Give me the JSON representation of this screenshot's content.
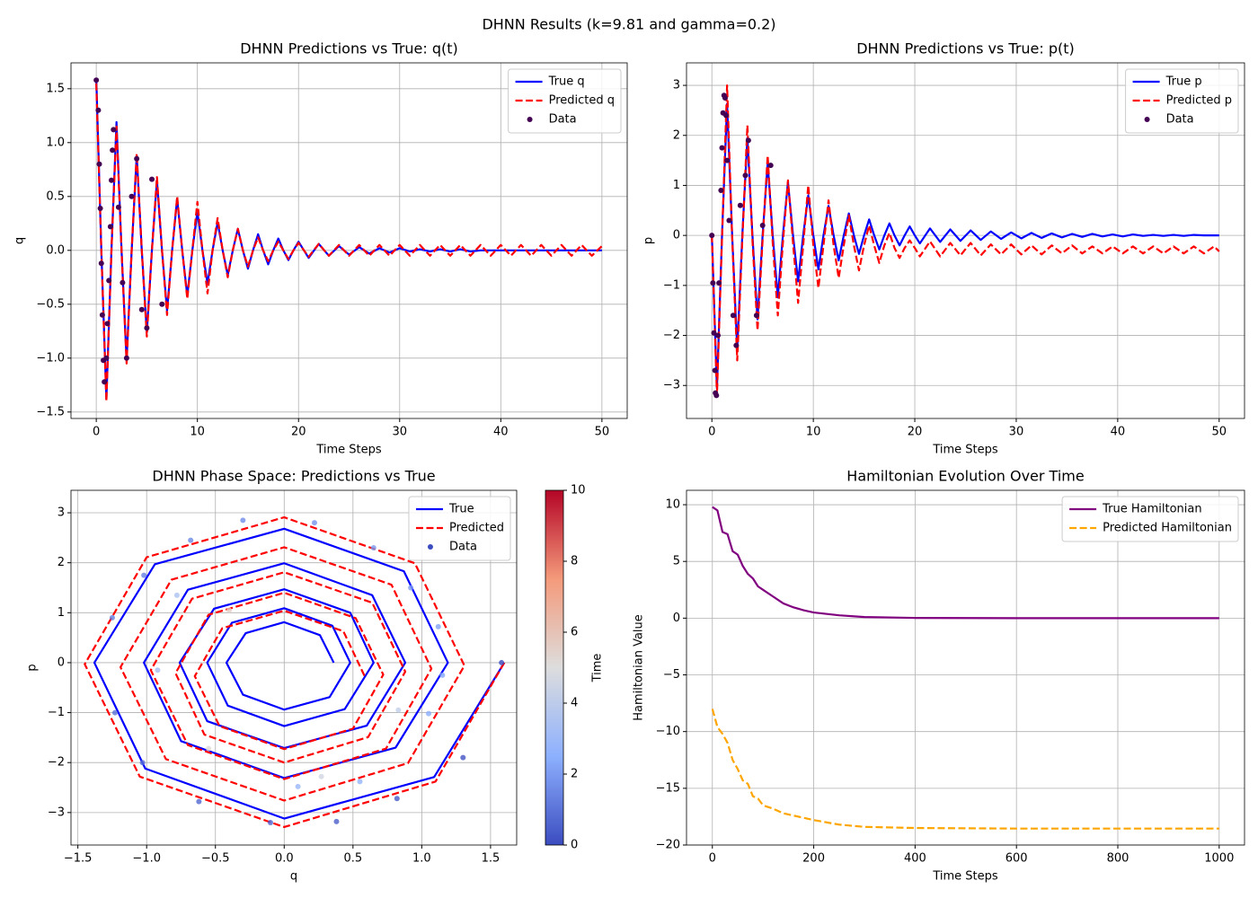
{
  "title": "DHNN Results (k=9.81 and gamma=0.2)",
  "chart_data": [
    {
      "type": "line",
      "title": "DHNN Predictions vs True: q(t)",
      "xlabel": "Time Steps",
      "ylabel": "q",
      "xlim": [
        -2.5,
        52.5
      ],
      "ylim": [
        -1.56,
        1.74
      ],
      "xticks": [
        0,
        10,
        20,
        30,
        40,
        50
      ],
      "yticks": [
        {
          "value": -1.5,
          "label": "−1.5"
        },
        {
          "value": -1,
          "label": "−1.0"
        },
        {
          "value": -0.5,
          "label": "−0.5"
        },
        {
          "value": 0,
          "label": "0.0"
        },
        0.5,
        {
          "value": 1,
          "label": "1.0"
        },
        1.5
      ],
      "grid": true,
      "legend": "upper right",
      "x": [
        0,
        0.5,
        1,
        1.5,
        2,
        2.5,
        3,
        3.5,
        4,
        4.5,
        5,
        5.5,
        6,
        6.5,
        7,
        7.5,
        8,
        8.5,
        9,
        9.5,
        10,
        10.5,
        11,
        11.5,
        12,
        12.5,
        13,
        13.5,
        14,
        14.5,
        15,
        15.5,
        16,
        16.5,
        17,
        17.5,
        18,
        18.5,
        19,
        19.5,
        20,
        21,
        22,
        23,
        24,
        25,
        26,
        27,
        28,
        29,
        30,
        31,
        32,
        33,
        34,
        35,
        36,
        37,
        38,
        39,
        40,
        41,
        42,
        43,
        44,
        45,
        46,
        47,
        48,
        49,
        50
      ],
      "series": [
        {
          "name": "True q",
          "color": "#0000ff",
          "dash": false,
          "values": [
            1.6,
            0,
            -1.38,
            0,
            1.19,
            0,
            -1.02,
            0,
            0.88,
            0,
            -0.76,
            0,
            0.65,
            0,
            -0.56,
            0,
            0.48,
            0,
            -0.42,
            0,
            0.36,
            0,
            -0.31,
            0,
            0.26,
            0,
            -0.23,
            0,
            0.2,
            0,
            -0.17,
            0,
            0.15,
            0,
            -0.13,
            0,
            0.11,
            0,
            -0.09,
            0,
            0.08,
            -0.07,
            0.06,
            -0.05,
            0.04,
            -0.04,
            0.03,
            -0.03,
            0.02,
            -0.02,
            0.02,
            -0.01,
            0.01,
            -0.01,
            0.01,
            -0.01,
            0.01,
            -0.01,
            0,
            0,
            0,
            0,
            0,
            0,
            0,
            0,
            0,
            0,
            0,
            0,
            0
          ]
        },
        {
          "name": "Predicted q",
          "color": "#ff0000",
          "dash": true,
          "values": [
            1.55,
            0,
            -1.4,
            0,
            1.15,
            0,
            -1.05,
            0,
            0.9,
            0,
            -0.8,
            0,
            0.68,
            0,
            -0.6,
            0,
            0.5,
            0,
            -0.45,
            0,
            0.45,
            0,
            -0.4,
            0,
            0.3,
            0,
            -0.25,
            0,
            0.2,
            0,
            -0.15,
            0,
            0.12,
            0,
            -0.1,
            0,
            0.08,
            0,
            -0.08,
            0,
            0.07,
            -0.06,
            0.06,
            -0.05,
            0.05,
            -0.05,
            0.05,
            -0.05,
            0.05,
            -0.05,
            0.05,
            -0.05,
            0.05,
            -0.05,
            0.05,
            -0.05,
            0.05,
            -0.05,
            0.05,
            -0.05,
            0.05,
            -0.05,
            0.05,
            -0.05,
            0.05,
            -0.05,
            0.05,
            -0.05,
            0.05,
            -0.05,
            0.04
          ]
        },
        {
          "name": "Data",
          "type": "scatter",
          "color": "#440154",
          "x": [
            0,
            0.2,
            0.3,
            0.4,
            0.5,
            0.6,
            0.7,
            0.8,
            1.0,
            1.1,
            1.25,
            1.4,
            1.5,
            1.6,
            1.7,
            2.2,
            2.6,
            3.0,
            3.5,
            4.0,
            4.5,
            5.0,
            5.5,
            6.5
          ],
          "values": [
            1.58,
            1.3,
            0.8,
            0.39,
            -0.12,
            -0.6,
            -1.02,
            -1.22,
            -1.0,
            -0.68,
            -0.28,
            0.22,
            0.65,
            0.93,
            1.12,
            0.4,
            -0.3,
            -1.0,
            0.5,
            0.85,
            -0.55,
            -0.72,
            0.66,
            -0.5
          ]
        }
      ]
    },
    {
      "type": "line",
      "title": "DHNN Predictions vs True: p(t)",
      "xlabel": "Time Steps",
      "ylabel": "p",
      "xlim": [
        -2.5,
        52.5
      ],
      "ylim": [
        -3.66,
        3.45
      ],
      "xticks": [
        0,
        10,
        20,
        30,
        40,
        50
      ],
      "yticks": [
        {
          "value": -3,
          "label": "−3"
        },
        {
          "value": -2,
          "label": "−2"
        },
        {
          "value": -1,
          "label": "−1"
        },
        0,
        1,
        2,
        3
      ],
      "grid": true,
      "legend": "upper right",
      "x": [
        0,
        0.5,
        1,
        1.5,
        2,
        2.5,
        3,
        3.5,
        4,
        4.5,
        5,
        5.5,
        6,
        6.5,
        7,
        7.5,
        8,
        8.5,
        9,
        9.5,
        10,
        10.5,
        11,
        11.5,
        12,
        12.5,
        13,
        13.5,
        14,
        14.5,
        15,
        15.5,
        16,
        16.5,
        17,
        17.5,
        18,
        18.5,
        19,
        19.5,
        20,
        20.5,
        21.5,
        22.5,
        23.5,
        24.5,
        25.5,
        26.5,
        27.5,
        28.5,
        29.5,
        30.5,
        31.5,
        32.5,
        33.5,
        34.5,
        35.5,
        36.5,
        37.5,
        38.5,
        39.5,
        40.5,
        41.5,
        42.5,
        43.5,
        44.5,
        45.5,
        46.5,
        47.5,
        48.5,
        49.5,
        50
      ],
      "series": [
        {
          "name": "True p",
          "color": "#0000ff",
          "dash": false,
          "values": [
            0,
            -3.06,
            0,
            2.63,
            0,
            -2.27,
            0,
            1.95,
            0,
            -1.68,
            0,
            1.45,
            0,
            -1.24,
            0,
            1.07,
            0,
            -0.92,
            0,
            0.8,
            0,
            -0.68,
            0,
            0.59,
            0,
            -0.5,
            0,
            0.44,
            0,
            -0.37,
            0,
            0.32,
            0,
            -0.28,
            0,
            0.24,
            0,
            -0.2,
            0,
            0.18,
            0,
            -0.16,
            0.14,
            -0.13,
            0.12,
            -0.11,
            0.1,
            -0.09,
            0.08,
            -0.07,
            0.06,
            -0.06,
            0.05,
            -0.05,
            0.04,
            -0.04,
            0.03,
            -0.03,
            0.03,
            -0.02,
            0.02,
            -0.02,
            0.02,
            -0.01,
            0.01,
            -0.01,
            0.01,
            -0.01,
            0.01,
            0,
            0,
            0
          ]
        },
        {
          "name": "Predicted p",
          "color": "#ff0000",
          "dash": true,
          "values": [
            0,
            -3.2,
            -0.05,
            3.0,
            -0.05,
            -2.5,
            -0.1,
            2.2,
            -0.1,
            -1.9,
            -0.1,
            1.6,
            -0.15,
            -1.6,
            -0.15,
            1.1,
            -0.15,
            -1.35,
            -0.2,
            1.0,
            -0.2,
            -1.05,
            -0.2,
            0.7,
            -0.2,
            -0.85,
            -0.2,
            0.4,
            -0.2,
            -0.7,
            -0.2,
            0.2,
            -0.2,
            -0.55,
            -0.2,
            0.05,
            -0.25,
            -0.45,
            -0.25,
            -0.1,
            -0.25,
            -0.42,
            -0.12,
            -0.42,
            -0.15,
            -0.4,
            -0.15,
            -0.4,
            -0.18,
            -0.38,
            -0.18,
            -0.38,
            -0.2,
            -0.38,
            -0.2,
            -0.36,
            -0.2,
            -0.36,
            -0.22,
            -0.36,
            -0.22,
            -0.36,
            -0.22,
            -0.36,
            -0.22,
            -0.36,
            -0.22,
            -0.36,
            -0.22,
            -0.36,
            -0.22,
            -0.32
          ]
        },
        {
          "name": "Data",
          "type": "scatter",
          "color": "#440154",
          "x": [
            0,
            0.1,
            0.2,
            0.3,
            0.35,
            0.45,
            0.6,
            0.7,
            0.9,
            1.0,
            1.1,
            1.2,
            1.3,
            1.4,
            1.5,
            1.7,
            2.1,
            2.4,
            2.8,
            3.3,
            3.6,
            4.4,
            5.0,
            5.8
          ],
          "values": [
            0,
            -0.95,
            -1.95,
            -2.7,
            -3.15,
            -3.2,
            -2.0,
            -0.95,
            0.9,
            1.75,
            2.45,
            2.8,
            2.75,
            2.4,
            1.5,
            0.3,
            -1.6,
            -2.2,
            0.6,
            1.2,
            1.9,
            -1.6,
            0.2,
            1.4
          ]
        }
      ]
    },
    {
      "type": "line",
      "title": "DHNN Phase Space: Predictions vs True",
      "xlabel": "q",
      "ylabel": "p",
      "xlim": [
        -1.55,
        1.69
      ],
      "ylim": [
        -3.65,
        3.45
      ],
      "xticks": [
        {
          "value": -1.5,
          "label": "−1.5"
        },
        {
          "value": -1,
          "label": "−1.0"
        },
        {
          "value": -0.5,
          "label": "−0.5"
        },
        {
          "value": 0,
          "label": "0.0"
        },
        0.5,
        {
          "value": 1,
          "label": "1.0"
        },
        1.5
      ],
      "yticks": [
        {
          "value": -3,
          "label": "−3"
        },
        {
          "value": -2,
          "label": "−2"
        },
        {
          "value": -1,
          "label": "−1"
        },
        0,
        1,
        2,
        3
      ],
      "grid": true,
      "legend": "upper right",
      "cmap": "coolwarm",
      "clim": [
        0,
        10
      ],
      "cticks": [
        0,
        2,
        4,
        6,
        8,
        10
      ],
      "clabel": "Time",
      "series": [
        {
          "name": "True",
          "color": "#0000ff",
          "dash": false,
          "x": [
            1.6,
            1.09,
            0,
            -1.01,
            -1.38,
            -0.94,
            0,
            0.87,
            1.19,
            0.81,
            0,
            -0.75,
            -1.02,
            -0.7,
            0,
            0.64,
            0.88,
            0.6,
            0,
            -0.56,
            -0.76,
            -0.51,
            0,
            0.48,
            0.65,
            0.44,
            0,
            -0.41,
            -0.56,
            -0.38,
            0,
            0.35,
            0.48,
            0.33,
            0,
            -0.3,
            -0.42,
            -0.28,
            0,
            0.26,
            0.36
          ],
          "values": [
            0,
            -2.29,
            -3.12,
            -2.12,
            0,
            1.97,
            2.68,
            1.83,
            0,
            -1.7,
            -2.31,
            -1.57,
            0,
            1.46,
            1.99,
            1.35,
            0,
            -1.26,
            -1.71,
            -1.17,
            0,
            1.08,
            1.47,
            1.0,
            0,
            -0.93,
            -1.27,
            -0.86,
            0,
            0.8,
            1.09,
            0.74,
            0,
            -0.69,
            -0.94,
            -0.64,
            0,
            0.59,
            0.81,
            0.55,
            0
          ]
        },
        {
          "name": "Predicted",
          "color": "#ff0000",
          "dash": true,
          "x": [
            1.6,
            1.1,
            0,
            -1.05,
            -1.45,
            -1.0,
            0,
            0.95,
            1.31,
            0.9,
            0,
            -0.86,
            -1.19,
            -0.82,
            0,
            0.78,
            1.07,
            0.74,
            0,
            -0.7,
            -0.97,
            -0.67,
            0,
            0.64,
            0.88,
            0.61,
            0,
            -0.58,
            -0.79,
            -0.55,
            0,
            0.52,
            0.72,
            0.5,
            0,
            -0.47,
            -0.65,
            -0.45,
            0,
            0.43,
            0.59
          ],
          "values": [
            0,
            -2.38,
            -3.29,
            -2.28,
            -0.03,
            2.11,
            2.91,
            1.99,
            -0.06,
            -2.01,
            -2.76,
            -1.93,
            -0.09,
            1.66,
            2.31,
            1.56,
            -0.12,
            -1.72,
            -2.33,
            -1.65,
            -0.15,
            1.28,
            1.81,
            1.2,
            -0.18,
            -1.49,
            -2.0,
            -1.44,
            -0.21,
            0.96,
            1.4,
            0.89,
            -0.24,
            -1.32,
            -1.73,
            -1.27,
            -0.27,
            0.69,
            1.04,
            0.63,
            -0.3
          ]
        },
        {
          "name": "Data",
          "type": "scatter",
          "color": "#3b4cc0",
          "x": [
            1.58,
            1.3,
            0.82,
            0.38,
            -0.1,
            -0.62,
            -1.03,
            -1.23,
            -1.25,
            -1.02,
            -0.68,
            -0.3,
            0.22,
            0.65,
            0.92,
            1.12,
            1.15,
            1.05,
            0.1,
            -0.92,
            -0.78,
            0.27,
            0.55,
            -0.55,
            0.83,
            -0.4
          ],
          "values": [
            0,
            -1.9,
            -2.72,
            -3.18,
            -3.2,
            -2.78,
            -2.0,
            -1.0,
            0.9,
            1.75,
            2.45,
            2.85,
            2.8,
            2.3,
            1.5,
            0.72,
            -0.25,
            -1.02,
            -2.48,
            -0.15,
            1.35,
            -2.28,
            -2.38,
            -1.72,
            -0.95,
            1.05
          ],
          "time": [
            0,
            0.2,
            0.35,
            0.45,
            0.55,
            0.7,
            0.85,
            0.95,
            1.2,
            1.35,
            1.5,
            1.6,
            1.75,
            1.9,
            2.05,
            2.15,
            2.3,
            2.45,
            2.9,
            3.3,
            3.5,
            4.6,
            2.7,
            5.2,
            4.2,
            5.6
          ]
        }
      ]
    },
    {
      "type": "line",
      "title": "Hamiltonian Evolution Over Time",
      "xlabel": "Time Steps",
      "ylabel": "Hamiltonian Value",
      "xlim": [
        -51,
        1050
      ],
      "ylim": [
        -20,
        11.27
      ],
      "xticks": [
        0,
        200,
        400,
        600,
        800,
        1000
      ],
      "yticks": [
        {
          "value": -20,
          "label": "−20"
        },
        {
          "value": -15,
          "label": "−15"
        },
        {
          "value": -10,
          "label": "−10"
        },
        {
          "value": -5,
          "label": "−5"
        },
        0,
        5,
        10
      ],
      "grid": true,
      "legend": "upper right",
      "x": [
        0,
        10,
        20,
        30,
        40,
        50,
        60,
        70,
        80,
        90,
        100,
        120,
        140,
        160,
        180,
        200,
        250,
        300,
        400,
        600,
        1000
      ],
      "series": [
        {
          "name": "True Hamiltonian",
          "color": "#800080",
          "dash": false,
          "values": [
            9.8,
            9.5,
            7.6,
            7.4,
            5.9,
            5.6,
            4.6,
            3.9,
            3.5,
            2.8,
            2.5,
            1.9,
            1.3,
            0.95,
            0.7,
            0.5,
            0.25,
            0.1,
            0.02,
            0,
            0
          ]
        },
        {
          "name": "Predicted Hamiltonian",
          "color": "#ffa500",
          "dash": true,
          "values": [
            -8,
            -9.6,
            -10.2,
            -11,
            -12.5,
            -13.3,
            -14.3,
            -14.6,
            -15.7,
            -15.9,
            -16.5,
            -16.8,
            -17.2,
            -17.4,
            -17.6,
            -17.8,
            -18.2,
            -18.4,
            -18.5,
            -18.55,
            -18.55
          ]
        }
      ]
    }
  ]
}
